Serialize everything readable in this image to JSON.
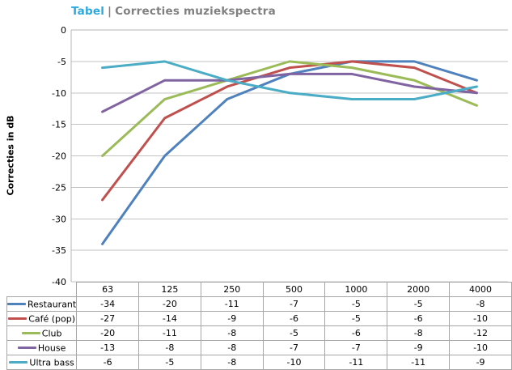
{
  "title": {
    "prefix": "Tabel",
    "separator": "|",
    "text": "Correcties muziekspectra",
    "prefix_color": "#29A9E0",
    "text_color": "#808080"
  },
  "chart_data": {
    "type": "line",
    "title": "Tabel | Correcties muziekspectra",
    "xlabel": "",
    "ylabel": "Correcties in dB",
    "categories": [
      "63",
      "125",
      "250",
      "500",
      "1000",
      "2000",
      "4000"
    ],
    "series": [
      {
        "name": "Restaurant",
        "color": "#4F81BD",
        "values": [
          -34,
          -20,
          -11,
          -7,
          -5,
          -5,
          -8
        ]
      },
      {
        "name": "Café (pop)",
        "color": "#C0504D",
        "values": [
          -27,
          -14,
          -9,
          -6,
          -5,
          -6,
          -10
        ]
      },
      {
        "name": "Club",
        "color": "#9BBB59",
        "values": [
          -20,
          -11,
          -8,
          -5,
          -6,
          -8,
          -12
        ]
      },
      {
        "name": "House",
        "color": "#8064A2",
        "values": [
          -13,
          -8,
          -8,
          -7,
          -7,
          -9,
          -10
        ]
      },
      {
        "name": "Ultra bass",
        "color": "#4BACC6",
        "values": [
          -6,
          -5,
          -8,
          -10,
          -11,
          -11,
          -9
        ]
      }
    ],
    "ylim": [
      -40,
      0
    ],
    "ytick_step": 5,
    "grid": true,
    "grid_color": "#C3C3C3",
    "axis_color": "#B5B5B5",
    "legend_position": "table-left"
  }
}
